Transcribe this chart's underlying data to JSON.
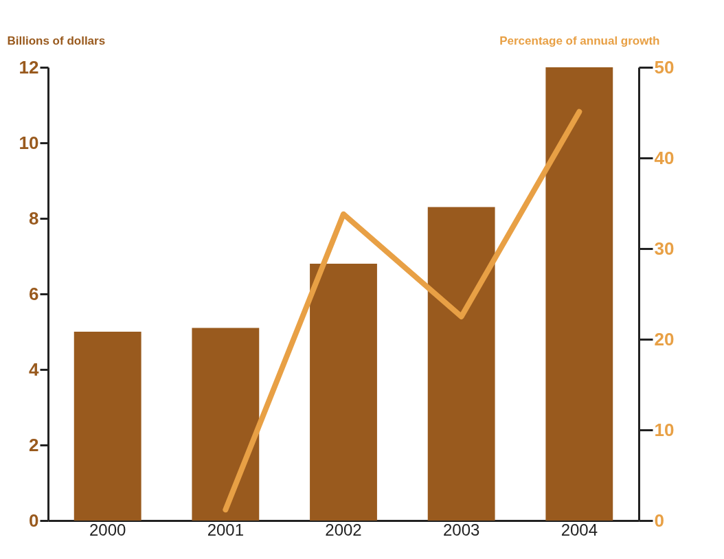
{
  "chart_data": {
    "type": "bar",
    "categories": [
      "2000",
      "2001",
      "2002",
      "2003",
      "2004"
    ],
    "ylabel": "Billions of dollars",
    "y2label": "Percentage of annual growth",
    "ylim": [
      0,
      12
    ],
    "yticks": [
      0,
      2,
      4,
      6,
      8,
      10,
      12
    ],
    "y2lim": [
      0,
      50
    ],
    "y2ticks": [
      0,
      10,
      20,
      30,
      40,
      50
    ],
    "grid": false,
    "line_style": "solid",
    "series": [
      {
        "color": "#995a1e",
        "values": [
          5.0,
          5.1,
          6.8,
          8.3,
          12.0
        ]
      },
      {
        "type": "line",
        "axis": "y2",
        "color": "#e8a045",
        "values": [
          null,
          1.2,
          33.8,
          22.5,
          45.1
        ]
      }
    ]
  }
}
